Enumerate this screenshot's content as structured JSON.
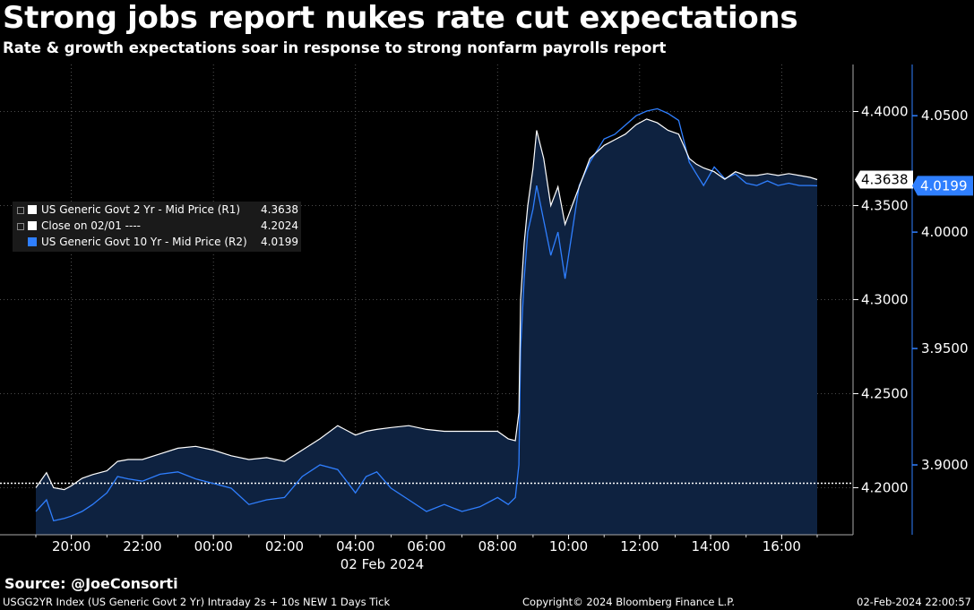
{
  "title": "Strong jobs report nukes rate cut expectations",
  "subtitle": "Rate & growth expectations soar in response to strong nonfarm payrolls report",
  "source": "Source: @JoeConsorti",
  "footer": {
    "left": "USGG2YR Index (US Generic Govt 2 Yr) Intraday 2s + 10s NEW 1 Days  Tick",
    "center": "Copyright© 2024 Bloomberg Finance L.P.",
    "right": "02-Feb-2024 22:00:57"
  },
  "legend": [
    {
      "label": "US Generic Govt 2 Yr - Mid Price (R1)",
      "value": "4.3638",
      "color": "#ffffff"
    },
    {
      "label": "Close on 02/01 ----",
      "value": "4.2024",
      "color": "#ffffff"
    },
    {
      "label": "US Generic Govt 10 Yr - Mid Price (R2)",
      "value": "4.0199",
      "color": "#2f7fff"
    }
  ],
  "colors": {
    "background": "#000000",
    "area_fill": "#0e2240",
    "series_2y": "#ffffff",
    "series_10y": "#2f7fff",
    "grid": "#666666"
  },
  "chart_data": {
    "type": "line",
    "date_label": "02 Feb 2024",
    "x_tick_labels": [
      "20:00",
      "22:00",
      "00:00",
      "02:00",
      "04:00",
      "06:00",
      "08:00",
      "10:00",
      "12:00",
      "14:00",
      "16:00"
    ],
    "x_tick_hours": [
      20,
      22,
      24,
      26,
      28,
      30,
      32,
      34,
      36,
      38,
      40
    ],
    "xlim_hours": [
      19,
      41
    ],
    "grid": true,
    "y1": {
      "label": "R1",
      "ylim": [
        4.175,
        4.425
      ],
      "ticks": [
        4.2,
        4.25,
        4.3,
        4.35,
        4.4
      ],
      "tick_labels": [
        "4.2000",
        "4.2500",
        "4.3000",
        "4.3500",
        "4.4000"
      ]
    },
    "y2": {
      "label": "R2",
      "ylim": [
        3.87,
        4.072
      ],
      "ticks": [
        3.9,
        3.95,
        4.0,
        4.05
      ],
      "tick_labels": [
        "3.9000",
        "3.9500",
        "4.0000",
        "4.0500"
      ]
    },
    "reference_line": {
      "name": "Close on 02/01",
      "value": 4.2024,
      "axis": "y1"
    },
    "last_value_tags": [
      {
        "value": 4.3638,
        "label": "4.3638",
        "axis": "y1"
      },
      {
        "value": 4.0199,
        "label": "4.0199",
        "axis": "y2"
      }
    ],
    "series": [
      {
        "name": "US Generic Govt 2 Yr - Mid Price (R1)",
        "axis": "y1",
        "x": [
          19.0,
          19.3,
          19.5,
          19.8,
          20.0,
          20.3,
          20.6,
          21.0,
          21.3,
          21.6,
          22.0,
          22.5,
          23.0,
          23.5,
          24.0,
          24.5,
          25.0,
          25.5,
          26.0,
          26.5,
          27.0,
          27.5,
          27.8,
          28.0,
          28.3,
          28.6,
          29.0,
          29.5,
          30.0,
          30.5,
          31.0,
          31.5,
          32.0,
          32.3,
          32.5,
          32.6,
          32.65,
          32.75,
          32.85,
          33.0,
          33.1,
          33.3,
          33.5,
          33.7,
          33.9,
          34.1,
          34.3,
          34.6,
          35.0,
          35.3,
          35.6,
          35.9,
          36.2,
          36.5,
          36.8,
          37.1,
          37.4,
          37.6,
          37.8,
          38.1,
          38.4,
          38.7,
          39.0,
          39.3,
          39.6,
          39.9,
          40.2,
          40.5,
          40.8,
          41.0
        ],
        "y": [
          4.2,
          4.208,
          4.2,
          4.199,
          4.201,
          4.205,
          4.207,
          4.209,
          4.214,
          4.215,
          4.215,
          4.218,
          4.221,
          4.222,
          4.22,
          4.217,
          4.215,
          4.216,
          4.214,
          4.22,
          4.226,
          4.233,
          4.23,
          4.228,
          4.23,
          4.231,
          4.232,
          4.233,
          4.231,
          4.23,
          4.23,
          4.23,
          4.23,
          4.226,
          4.225,
          4.24,
          4.3,
          4.33,
          4.35,
          4.37,
          4.39,
          4.375,
          4.35,
          4.36,
          4.34,
          4.35,
          4.36,
          4.375,
          4.382,
          4.385,
          4.388,
          4.393,
          4.396,
          4.394,
          4.39,
          4.388,
          4.375,
          4.372,
          4.37,
          4.368,
          4.364,
          4.368,
          4.366,
          4.366,
          4.367,
          4.366,
          4.367,
          4.366,
          4.365,
          4.3638
        ]
      },
      {
        "name": "US Generic Govt 10 Yr - Mid Price (R2)",
        "axis": "y2",
        "x": [
          19.0,
          19.3,
          19.5,
          19.8,
          20.0,
          20.3,
          20.6,
          21.0,
          21.3,
          21.6,
          22.0,
          22.5,
          23.0,
          23.5,
          24.0,
          24.5,
          25.0,
          25.5,
          26.0,
          26.5,
          27.0,
          27.5,
          27.8,
          28.0,
          28.3,
          28.6,
          29.0,
          29.5,
          30.0,
          30.5,
          31.0,
          31.5,
          32.0,
          32.3,
          32.5,
          32.6,
          32.65,
          32.75,
          32.85,
          33.0,
          33.1,
          33.3,
          33.5,
          33.7,
          33.9,
          34.1,
          34.3,
          34.6,
          35.0,
          35.3,
          35.6,
          35.9,
          36.2,
          36.5,
          36.8,
          37.1,
          37.4,
          37.6,
          37.8,
          38.1,
          38.4,
          38.7,
          39.0,
          39.3,
          39.6,
          39.9,
          40.2,
          40.5,
          40.8,
          41.0
        ],
        "y": [
          3.88,
          3.885,
          3.876,
          3.877,
          3.878,
          3.88,
          3.883,
          3.888,
          3.895,
          3.894,
          3.893,
          3.896,
          3.897,
          3.894,
          3.892,
          3.89,
          3.883,
          3.885,
          3.886,
          3.895,
          3.9,
          3.898,
          3.892,
          3.888,
          3.895,
          3.897,
          3.89,
          3.885,
          3.88,
          3.883,
          3.88,
          3.882,
          3.886,
          3.883,
          3.886,
          3.9,
          3.95,
          3.98,
          4.0,
          4.01,
          4.02,
          4.005,
          3.99,
          4.0,
          3.98,
          4.0,
          4.02,
          4.03,
          4.04,
          4.042,
          4.046,
          4.05,
          4.052,
          4.053,
          4.051,
          4.048,
          4.03,
          4.025,
          4.02,
          4.028,
          4.023,
          4.025,
          4.021,
          4.02,
          4.022,
          4.02,
          4.021,
          4.02,
          4.02,
          4.0199
        ]
      }
    ]
  }
}
